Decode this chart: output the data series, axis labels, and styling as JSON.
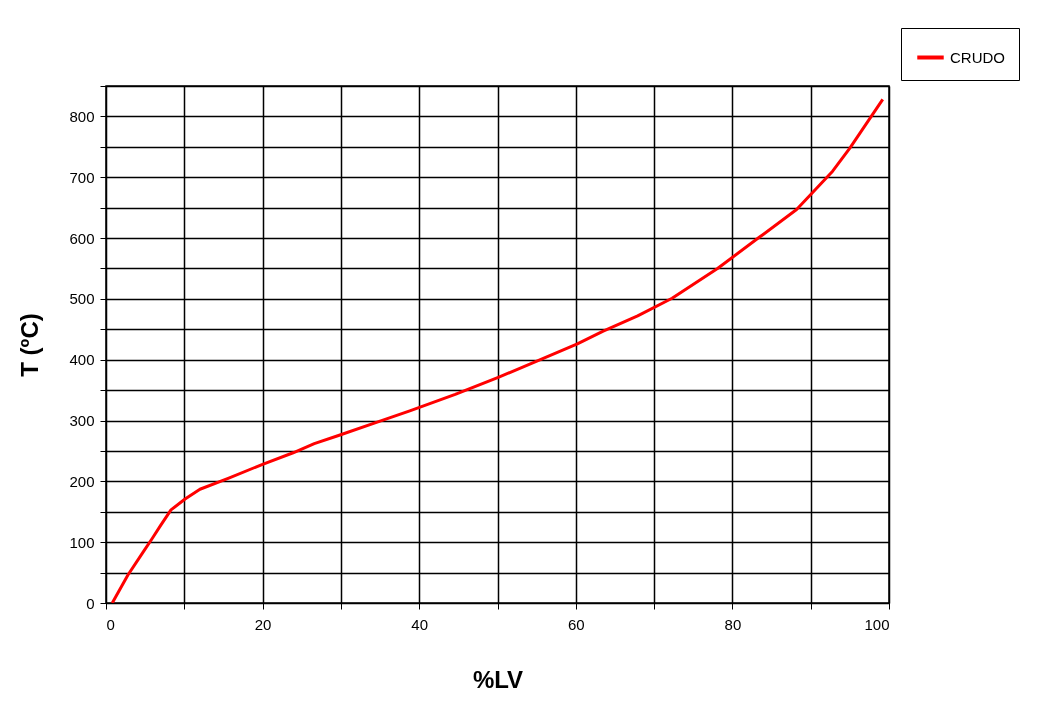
{
  "chart_data": {
    "type": "line",
    "xlabel": "%LV",
    "ylabel": "T (ºC)",
    "xlim": [
      0,
      100
    ],
    "ylim": [
      0,
      850
    ],
    "xticks": [
      0,
      {
        "value": 10,
        "label": null
      },
      20,
      {
        "value": 30,
        "label": null
      },
      40,
      {
        "value": 50,
        "label": null
      },
      60,
      {
        "value": 70,
        "label": null
      },
      80,
      {
        "value": 90,
        "label": null
      },
      100
    ],
    "yticks": [
      0,
      {
        "value": 50,
        "label": null
      },
      100,
      {
        "value": 150,
        "label": null
      },
      200,
      {
        "value": 250,
        "label": null
      },
      300,
      {
        "value": 350,
        "label": null
      },
      400,
      {
        "value": 450,
        "label": null
      },
      500,
      {
        "value": 550,
        "label": null
      },
      600,
      {
        "value": 650,
        "label": null
      },
      700,
      {
        "value": 750,
        "label": null
      },
      800,
      {
        "value": 850,
        "label": null
      }
    ],
    "grid": true,
    "legend": "top right",
    "line_style": "solid",
    "series": [
      {
        "name": "CRUDO",
        "color": "#ff0000",
        "x": [
          0.8,
          2.8,
          4.8,
          5.9,
          7.0,
          8.3,
          10.1,
          12.0,
          15.6,
          20.0,
          23.9,
          26.6,
          29.6,
          35.0,
          38.8,
          44.6,
          50.1,
          55.1,
          60.2,
          63.5,
          67.9,
          72.3,
          78.1,
          83.3,
          88.2,
          92.8,
          95.0,
          99.2
        ],
        "values": [
          0,
          46,
          85,
          106,
          128,
          153,
          171,
          187,
          205,
          228,
          247,
          262,
          275,
          299,
          316,
          343,
          371,
          398,
          426,
          447,
          472,
          501,
          550,
          600,
          647,
          710,
          748,
          828
        ]
      }
    ]
  }
}
